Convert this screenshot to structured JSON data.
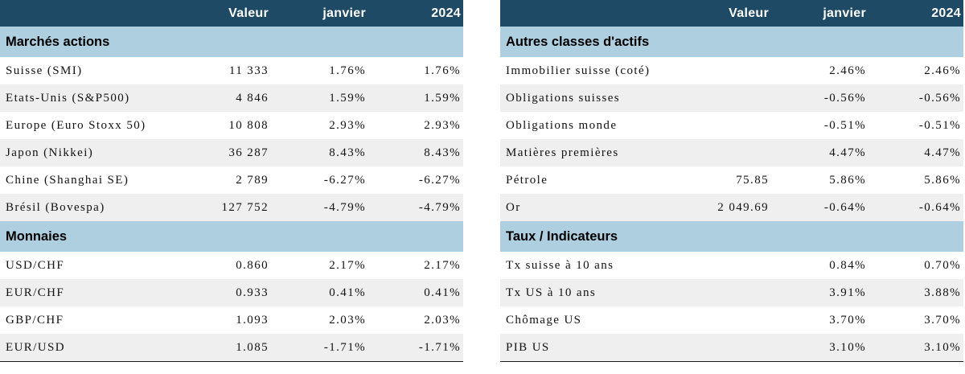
{
  "headers": {
    "name": "",
    "valeur": "Valeur",
    "janvier": "janvier",
    "ytd": "2024"
  },
  "left": {
    "sections": [
      {
        "title": "Marchés actions",
        "rows": [
          {
            "name": "Suisse (SMI)",
            "valeur": "11 333",
            "janvier": "1.76%",
            "ytd": "1.76%"
          },
          {
            "name": "Etats-Unis (S&P500)",
            "valeur": "4 846",
            "janvier": "1.59%",
            "ytd": "1.59%"
          },
          {
            "name": "Europe (Euro Stoxx 50)",
            "valeur": "10 808",
            "janvier": "2.93%",
            "ytd": "2.93%"
          },
          {
            "name": "Japon (Nikkei)",
            "valeur": "36 287",
            "janvier": "8.43%",
            "ytd": "8.43%"
          },
          {
            "name": "Chine (Shanghai SE)",
            "valeur": "2 789",
            "janvier": "-6.27%",
            "ytd": "-6.27%"
          },
          {
            "name": "Brésil (Bovespa)",
            "valeur": "127 752",
            "janvier": "-4.79%",
            "ytd": "-4.79%"
          }
        ]
      },
      {
        "title": "Monnaies",
        "rows": [
          {
            "name": "USD/CHF",
            "valeur": "0.860",
            "janvier": "2.17%",
            "ytd": "2.17%"
          },
          {
            "name": "EUR/CHF",
            "valeur": "0.933",
            "janvier": "0.41%",
            "ytd": "0.41%"
          },
          {
            "name": "GBP/CHF",
            "valeur": "1.093",
            "janvier": "2.03%",
            "ytd": "2.03%"
          },
          {
            "name": "EUR/USD",
            "valeur": "1.085",
            "janvier": "-1.71%",
            "ytd": "-1.71%"
          }
        ]
      }
    ]
  },
  "right": {
    "sections": [
      {
        "title": "Autres classes d'actifs",
        "rows": [
          {
            "name": "Immobilier suisse (coté)",
            "valeur": "",
            "janvier": "2.46%",
            "ytd": "2.46%"
          },
          {
            "name": "Obligations suisses",
            "valeur": "",
            "janvier": "-0.56%",
            "ytd": "-0.56%"
          },
          {
            "name": "Obligations monde",
            "valeur": "",
            "janvier": "-0.51%",
            "ytd": "-0.51%"
          },
          {
            "name": "Matières premières",
            "valeur": "",
            "janvier": "4.47%",
            "ytd": "4.47%"
          },
          {
            "name": "Pétrole",
            "valeur": "75.85",
            "janvier": "5.86%",
            "ytd": "5.86%"
          },
          {
            "name": "Or",
            "valeur": "2 049.69",
            "janvier": "-0.64%",
            "ytd": "-0.64%"
          }
        ]
      },
      {
        "title": "Taux / Indicateurs",
        "rows": [
          {
            "name": "Tx suisse à 10 ans",
            "valeur": "",
            "janvier": "0.84%",
            "ytd": "0.70%"
          },
          {
            "name": "Tx US à 10 ans",
            "valeur": "",
            "janvier": "3.91%",
            "ytd": "3.88%"
          },
          {
            "name": "Chômage US",
            "valeur": "",
            "janvier": "3.70%",
            "ytd": "3.70%"
          },
          {
            "name": "PIB US",
            "valeur": "",
            "janvier": "3.10%",
            "ytd": "3.10%"
          }
        ]
      }
    ]
  }
}
